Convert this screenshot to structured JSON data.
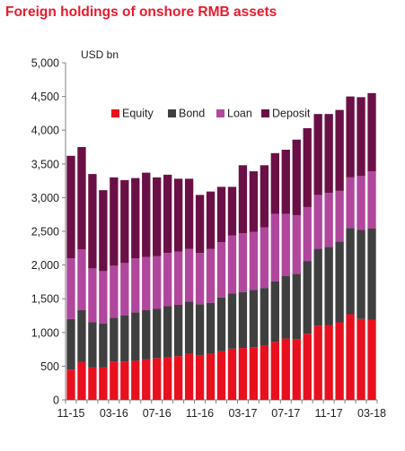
{
  "chart_data": {
    "type": "bar",
    "stacked": true,
    "title": "Foreign holdings of onshore RMB assets",
    "ylabel": "USD bn",
    "xlabel": "",
    "ylim": [
      0,
      5000
    ],
    "yticks": [
      0,
      500,
      1000,
      1500,
      2000,
      2500,
      3000,
      3500,
      4000,
      4500,
      5000
    ],
    "ytick_labels": [
      "0",
      "500",
      "1,000",
      "1,500",
      "2,000",
      "2,500",
      "3,000",
      "3,500",
      "4,000",
      "4,500",
      "5,000"
    ],
    "grid": false,
    "legend_position": "top-center",
    "categories": [
      "11-15",
      "12-15",
      "01-16",
      "02-16",
      "03-16",
      "04-16",
      "05-16",
      "06-16",
      "07-16",
      "08-16",
      "09-16",
      "10-16",
      "11-16",
      "12-16",
      "01-17",
      "02-17",
      "03-17",
      "04-17",
      "05-17",
      "06-17",
      "07-17",
      "08-17",
      "09-17",
      "10-17",
      "11-17",
      "12-17",
      "01-18",
      "02-18",
      "03-18"
    ],
    "xtick_labels": [
      "11-15",
      "03-16",
      "07-16",
      "11-16",
      "03-17",
      "07-17",
      "11-17",
      "03-18"
    ],
    "series": [
      {
        "name": "Equity",
        "color": "#e8101e",
        "values": [
          450,
          560,
          480,
          480,
          570,
          570,
          580,
          600,
          620,
          630,
          650,
          680,
          660,
          680,
          720,
          760,
          770,
          780,
          800,
          860,
          910,
          900,
          980,
          1100,
          1110,
          1150,
          1270,
          1200,
          1190
        ]
      },
      {
        "name": "Bond",
        "color": "#3f3f3f",
        "values": [
          750,
          770,
          670,
          650,
          650,
          680,
          720,
          730,
          730,
          760,
          760,
          780,
          760,
          760,
          800,
          820,
          830,
          850,
          860,
          900,
          930,
          970,
          1080,
          1140,
          1160,
          1200,
          1280,
          1320,
          1350
        ]
      },
      {
        "name": "Loan",
        "color": "#b0479d",
        "values": [
          900,
          900,
          800,
          780,
          770,
          780,
          800,
          790,
          780,
          790,
          790,
          780,
          760,
          800,
          820,
          860,
          870,
          860,
          900,
          1000,
          920,
          870,
          800,
          800,
          800,
          750,
          750,
          800,
          850
        ]
      },
      {
        "name": "Deposit",
        "color": "#6b1046",
        "values": [
          1520,
          1520,
          1400,
          1200,
          1310,
          1230,
          1190,
          1250,
          1170,
          1160,
          1080,
          1040,
          860,
          850,
          820,
          720,
          1010,
          900,
          920,
          900,
          950,
          1120,
          1170,
          1200,
          1170,
          1200,
          1200,
          1170,
          1160
        ]
      }
    ]
  }
}
